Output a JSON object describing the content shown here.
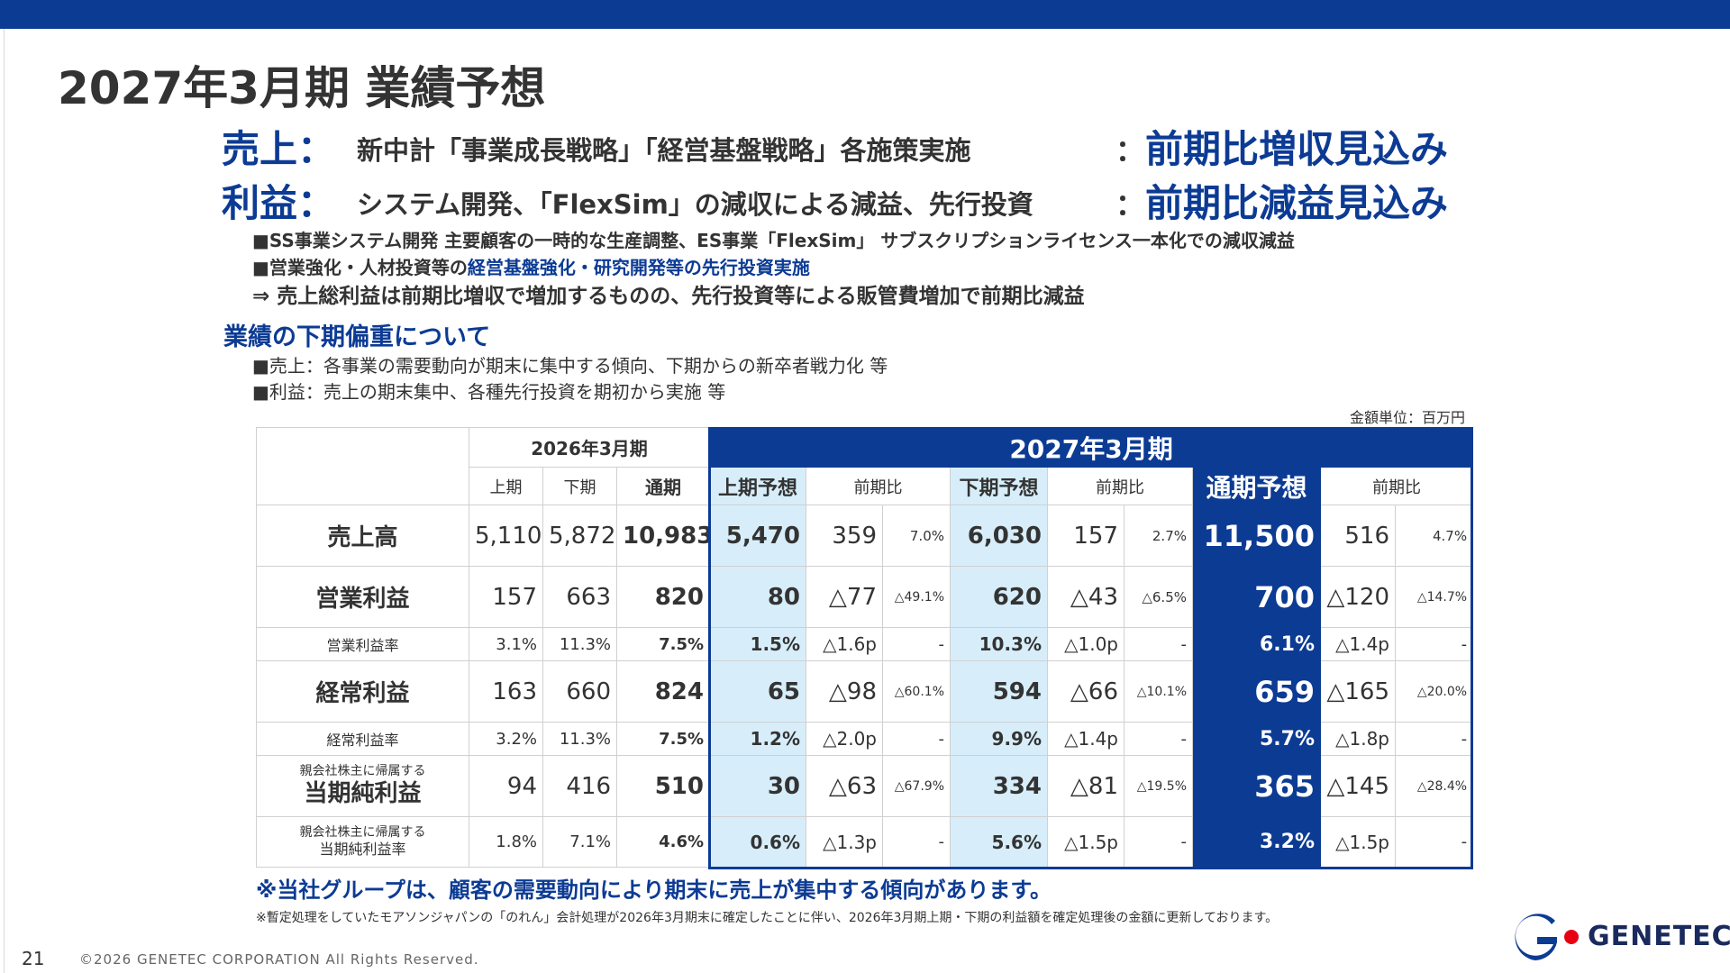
{
  "title": "2027年3月期 業績予想",
  "headlines": [
    {
      "label": "売上：",
      "text": "新中計「事業成長戦略」「経営基盤戦略」各施策実施",
      "colon": "：",
      "result": "前期比増収見込み"
    },
    {
      "label": "利益：",
      "text": "システム開発、「FlexSim」の減収による減益、先行投資",
      "colon": "：",
      "result": "前期比減益見込み"
    }
  ],
  "bullets": {
    "b1": "■SS事業システム開発 主要顧客の一時的な生産調整、ES事業「FlexSim」 サブスクリプションライセンス一本化での減収減益",
    "b2_pre": "■営業強化・人材投資等の",
    "b2_blue": "経営基盤強化・研究開発等の先行投資実施",
    "b3": "⇒ 売上総利益は前期比増収で増加するものの、先行投資等による販管費増加で前期比減益"
  },
  "sub_heading": "業績の下期偏重について",
  "sub_bullets": [
    "■売上：各事業の需要動向が期末に集中する傾向、下期からの新卒者戦力化 等",
    "■利益：売上の期末集中、各種先行投資を期初から実施 等"
  ],
  "unit": "金額単位：百万円",
  "table": {
    "h_2026": "2026年3月期",
    "h_2027": "2027年3月期",
    "sub": {
      "h1": "上期",
      "h2": "下期",
      "full": "通期",
      "f1": "上期予想",
      "yoy1": "前期比",
      "f2": "下期予想",
      "yoy2": "前期比",
      "ff": "通期予想",
      "yoyf": "前期比"
    },
    "rows": {
      "sales": {
        "label": "売上高",
        "h1": "5,110",
        "h2": "5,872",
        "full": "10,983",
        "f1": "5,470",
        "d1": "359",
        "p1": "7.0%",
        "f2": "6,030",
        "d2": "157",
        "p2": "2.7%",
        "ff": "11,500",
        "df": "516",
        "pf": "4.7%"
      },
      "op": {
        "label": "営業利益",
        "h1": "157",
        "h2": "663",
        "full": "820",
        "f1": "80",
        "d1": "△77",
        "p1": "△49.1%",
        "f2": "620",
        "d2": "△43",
        "p2": "△6.5%",
        "ff": "700",
        "df": "△120",
        "pf": "△14.7%"
      },
      "op_rate": {
        "label": "営業利益率",
        "h1": "3.1%",
        "h2": "11.3%",
        "full": "7.5%",
        "f1": "1.5%",
        "d1": "△1.6p",
        "p1": "-",
        "f2": "10.3%",
        "d2": "△1.0p",
        "p2": "-",
        "ff": "6.1%",
        "df": "△1.4p",
        "pf": "-"
      },
      "ord": {
        "label": "経常利益",
        "h1": "163",
        "h2": "660",
        "full": "824",
        "f1": "65",
        "d1": "△98",
        "p1": "△60.1%",
        "f2": "594",
        "d2": "△66",
        "p2": "△10.1%",
        "ff": "659",
        "df": "△165",
        "pf": "△20.0%"
      },
      "ord_rate": {
        "label": "経常利益率",
        "h1": "3.2%",
        "h2": "11.3%",
        "full": "7.5%",
        "f1": "1.2%",
        "d1": "△2.0p",
        "p1": "-",
        "f2": "9.9%",
        "d2": "△1.4p",
        "p2": "-",
        "ff": "5.7%",
        "df": "△1.8p",
        "pf": "-"
      },
      "net": {
        "label_small": "親会社株主に帰属する",
        "label": "当期純利益",
        "h1": "94",
        "h2": "416",
        "full": "510",
        "f1": "30",
        "d1": "△63",
        "p1": "△67.9%",
        "f2": "334",
        "d2": "△81",
        "p2": "△19.5%",
        "ff": "365",
        "df": "△145",
        "pf": "△28.4%"
      },
      "net_rate": {
        "label_small": "親会社株主に帰属する",
        "label": "当期純利益率",
        "h1": "1.8%",
        "h2": "7.1%",
        "full": "4.6%",
        "f1": "0.6%",
        "d1": "△1.3p",
        "p1": "-",
        "f2": "5.6%",
        "d2": "△1.5p",
        "p2": "-",
        "ff": "3.2%",
        "df": "△1.5p",
        "pf": "-"
      }
    }
  },
  "note_big": "※当社グループは、顧客の需要動向により期末に売上が集中する傾向があります。",
  "note_small": "※暫定処理をしていたモアソンジャパンの「のれん」会計処理が2026年3月期末に確定したことに伴い、2026年3月期上期・下期の利益額を確定処理後の金額に更新しております。",
  "page_number": "21",
  "copyright": "©2026 GENETEC CORPORATION All Rights Reserved.",
  "logo": {
    "word": "GENETEC",
    "icon": "genetec-g-logo-icon",
    "accent": "#e60012"
  },
  "colors": {
    "brand_blue": "#0c3b94",
    "light_blue": "#d7eefa"
  }
}
